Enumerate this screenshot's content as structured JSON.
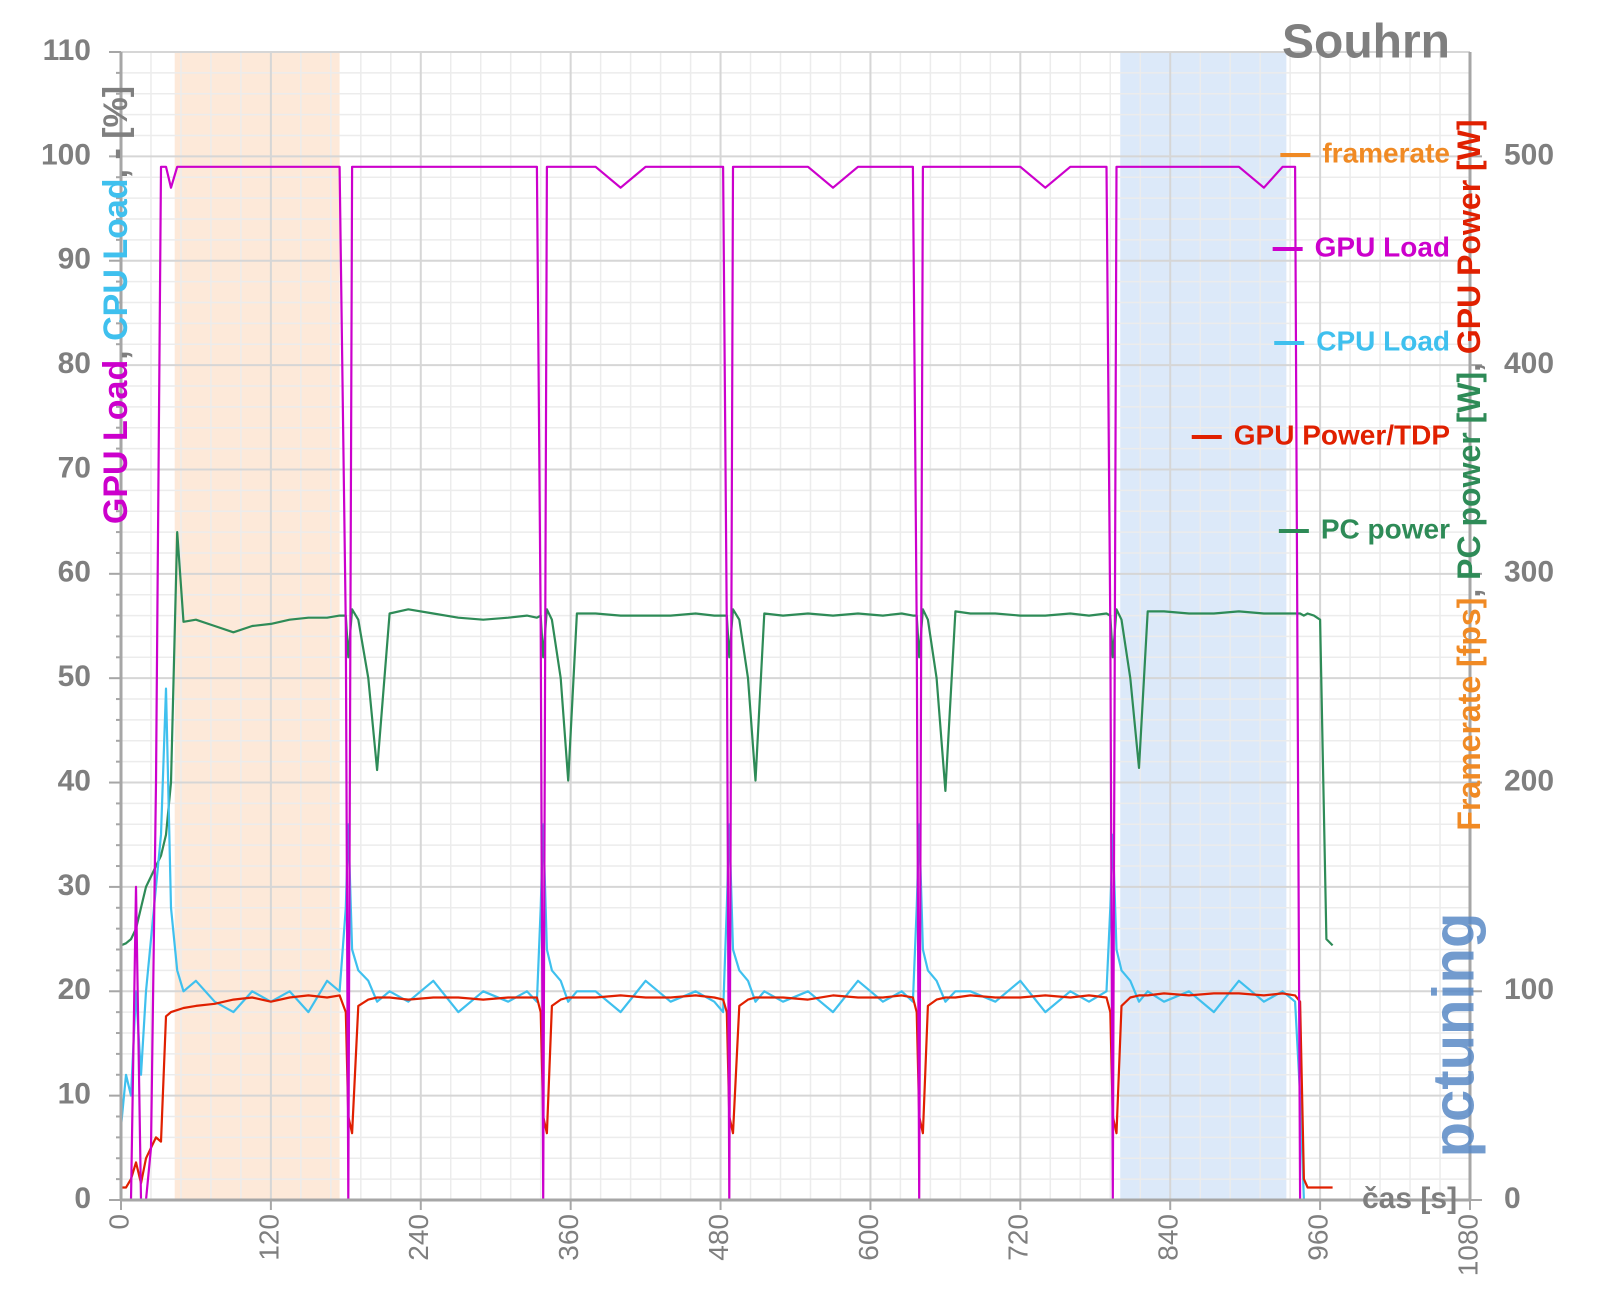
{
  "chart_data": {
    "type": "line",
    "title": "Souhrn",
    "xlabel": "čas [s]",
    "ylabel_parts": [
      {
        "text": "GPU Load",
        "color": "#cc00cc"
      },
      {
        "text": ", ",
        "color": "#7f7f7f"
      },
      {
        "text": "CPU Load",
        "color": "#3fc0ee"
      },
      {
        "text": ", - [%]",
        "color": "#7f7f7f"
      }
    ],
    "y2label_parts": [
      {
        "text": "Framerate [fps]",
        "color": "#f08a24"
      },
      {
        "text": ", ",
        "color": "#7f7f7f"
      },
      {
        "text": "PC power [W]",
        "color": "#2e8b57"
      },
      {
        "text": ", ",
        "color": "#7f7f7f"
      },
      {
        "text": "GPU Power [W]",
        "color": "#e02000"
      }
    ],
    "watermark": "pctuning",
    "xlim": [
      0,
      1080
    ],
    "xticks": [
      0,
      120,
      240,
      360,
      480,
      600,
      720,
      840,
      960,
      1080
    ],
    "ylim": [
      0,
      110
    ],
    "yticks": [
      0,
      10,
      20,
      30,
      40,
      50,
      60,
      70,
      80,
      90,
      100,
      110
    ],
    "y2lim": [
      0,
      550
    ],
    "y2ticks": [
      0,
      100,
      200,
      300,
      400,
      500
    ],
    "grid": true,
    "legend": "right",
    "bands": [
      {
        "x": [
          43,
          175
        ],
        "color": "#fde9d9"
      },
      {
        "x": [
          800,
          933
        ],
        "color": "#dce9f9"
      }
    ],
    "x": [
      0,
      4,
      8,
      12,
      16,
      20,
      24,
      28,
      32,
      36,
      40,
      45,
      50,
      60,
      75,
      90,
      105,
      120,
      135,
      150,
      165,
      175,
      180,
      182,
      185,
      190,
      198,
      205,
      215,
      230,
      250,
      270,
      290,
      310,
      325,
      333,
      336,
      338,
      341,
      345,
      352,
      358,
      365,
      380,
      400,
      420,
      440,
      460,
      475,
      482,
      485,
      487,
      490,
      495,
      502,
      508,
      515,
      530,
      550,
      570,
      590,
      610,
      625,
      634,
      637,
      639,
      642,
      646,
      653,
      660,
      668,
      680,
      700,
      720,
      740,
      760,
      775,
      789,
      792,
      794,
      797,
      801,
      808,
      815,
      822,
      835,
      855,
      875,
      895,
      915,
      930,
      940,
      944,
      947,
      950,
      955,
      960,
      965,
      970
    ],
    "series": [
      {
        "name": "framerate",
        "color": "#f08a24",
        "axis": "y2",
        "values": [
          0,
          0,
          0,
          0,
          0,
          0,
          0,
          0,
          0,
          0,
          0,
          0,
          0,
          0,
          0,
          0,
          0,
          0,
          0,
          0,
          0,
          0,
          0,
          0,
          0,
          0,
          0,
          0,
          0,
          0,
          0,
          0,
          0,
          0,
          0,
          0,
          0,
          0,
          0,
          0,
          0,
          0,
          0,
          0,
          0,
          0,
          0,
          0,
          0,
          0,
          0,
          0,
          0,
          0,
          0,
          0,
          0,
          0,
          0,
          0,
          0,
          0,
          0,
          0,
          0,
          0,
          0,
          0,
          0,
          0,
          0,
          0,
          0,
          0,
          0,
          0,
          0,
          0,
          0,
          0,
          0,
          0,
          0,
          0,
          0,
          0,
          0,
          0,
          0,
          0,
          0,
          0,
          0,
          0,
          0,
          0,
          0,
          0,
          0
        ]
      },
      {
        "name": "GPU Load",
        "color": "#cc00cc",
        "values": [
          0,
          0,
          0,
          30,
          0,
          0,
          5,
          40,
          99,
          99,
          97,
          99,
          99,
          99,
          99,
          99,
          99,
          99,
          99,
          99,
          99,
          99,
          55,
          0,
          99,
          99,
          99,
          99,
          99,
          99,
          99,
          99,
          99,
          99,
          99,
          99,
          55,
          0,
          99,
          99,
          99,
          99,
          99,
          99,
          97,
          99,
          99,
          99,
          99,
          99,
          55,
          0,
          99,
          99,
          99,
          99,
          99,
          99,
          99,
          97,
          99,
          99,
          99,
          99,
          55,
          0,
          99,
          99,
          99,
          99,
          99,
          99,
          99,
          99,
          97,
          99,
          99,
          99,
          55,
          0,
          99,
          99,
          99,
          99,
          99,
          99,
          99,
          99,
          99,
          97,
          99,
          99,
          0,
          0,
          0,
          0,
          0,
          0,
          0
        ]
      },
      {
        "name": "CPU Load",
        "color": "#3fc0ee",
        "values": [
          7,
          12,
          10,
          20,
          12,
          20,
          25,
          30,
          35,
          49,
          28,
          22,
          20,
          21,
          19,
          18,
          20,
          19,
          20,
          18,
          21,
          20,
          28,
          36,
          24,
          22,
          21,
          19,
          20,
          19,
          21,
          18,
          20,
          19,
          20,
          19,
          28,
          36,
          24,
          22,
          21,
          19,
          20,
          20,
          18,
          21,
          19,
          20,
          19,
          18,
          28,
          36,
          24,
          22,
          21,
          19,
          20,
          19,
          20,
          18,
          21,
          19,
          20,
          19,
          28,
          36,
          24,
          22,
          21,
          19,
          20,
          20,
          19,
          21,
          18,
          20,
          19,
          20,
          28,
          35,
          24,
          22,
          21,
          19,
          20,
          19,
          20,
          18,
          21,
          19,
          20,
          19,
          10,
          0,
          0,
          0,
          0,
          0,
          0
        ]
      },
      {
        "name": "GPU Power/TDP",
        "color": "#e02000",
        "axis": "y2",
        "values": [
          6,
          6,
          10,
          18,
          8,
          20,
          25,
          30,
          28,
          88,
          90,
          91,
          92,
          93,
          94,
          96,
          97,
          95,
          97,
          98,
          97,
          98,
          90,
          40,
          32,
          93,
          96,
          97,
          97,
          96,
          97,
          97,
          96,
          97,
          97,
          97,
          90,
          40,
          32,
          93,
          96,
          97,
          97,
          97,
          98,
          97,
          97,
          98,
          97,
          96,
          90,
          40,
          32,
          93,
          96,
          97,
          97,
          97,
          96,
          98,
          97,
          97,
          98,
          97,
          90,
          40,
          32,
          93,
          96,
          97,
          97,
          98,
          97,
          97,
          98,
          97,
          98,
          97,
          90,
          40,
          32,
          93,
          97,
          98,
          98,
          99,
          98,
          99,
          99,
          98,
          99,
          98,
          95,
          10,
          6,
          6,
          6,
          6,
          6
        ]
      },
      {
        "name": "PC power",
        "color": "#2e8b57",
        "axis": "y2",
        "values": [
          122,
          123,
          125,
          130,
          140,
          150,
          155,
          160,
          165,
          175,
          200,
          320,
          277,
          278,
          275,
          272,
          275,
          276,
          278,
          279,
          279,
          280,
          280,
          260,
          283,
          278,
          250,
          206,
          281,
          283,
          281,
          279,
          278,
          279,
          280,
          279,
          280,
          260,
          283,
          278,
          250,
          201,
          281,
          281,
          280,
          280,
          280,
          281,
          280,
          280,
          280,
          260,
          283,
          278,
          250,
          201,
          281,
          280,
          281,
          280,
          281,
          280,
          281,
          280,
          280,
          260,
          283,
          278,
          250,
          196,
          282,
          281,
          281,
          280,
          280,
          281,
          280,
          281,
          280,
          260,
          283,
          278,
          250,
          207,
          282,
          282,
          281,
          281,
          282,
          281,
          281,
          281,
          281,
          280,
          281,
          280,
          278,
          125,
          122
        ]
      }
    ]
  }
}
